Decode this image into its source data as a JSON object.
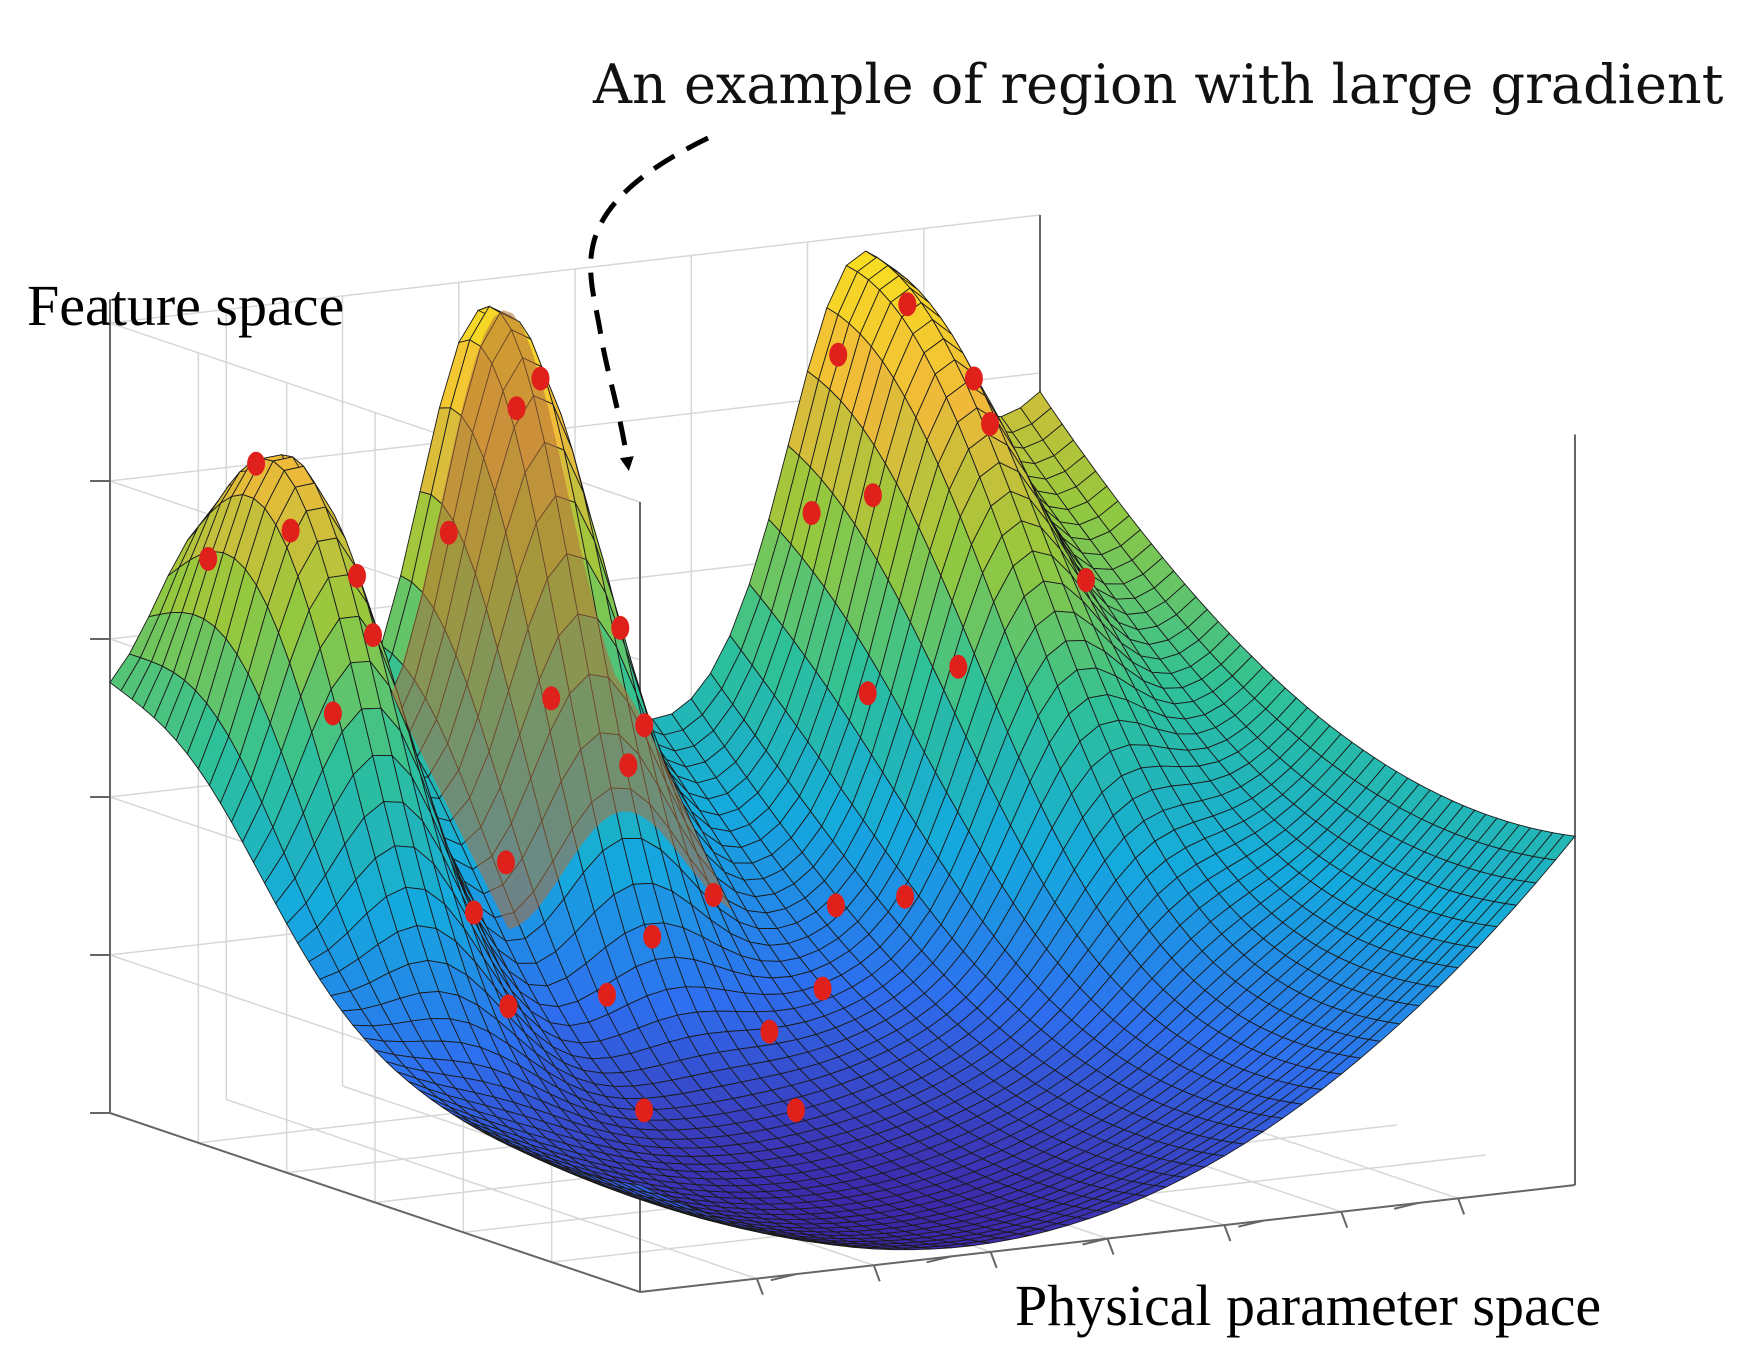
{
  "annotation": "An example of region with large gradient",
  "axes": {
    "zlabel": "Feature space",
    "xlabel": "Physical parameter space"
  },
  "chart_data": {
    "type": "surface",
    "colormap": [
      "#3e26a8",
      "#2e6fef",
      "#14aadd",
      "#2fc197",
      "#96c83c",
      "#f0b93a",
      "#f9e41e"
    ],
    "grid": "on",
    "tick_labels": "none",
    "surface_description": "U-shaped valley with three peaks along the back edge",
    "marker_color": "#e0201a",
    "highlight_color": "#b0703a"
  }
}
